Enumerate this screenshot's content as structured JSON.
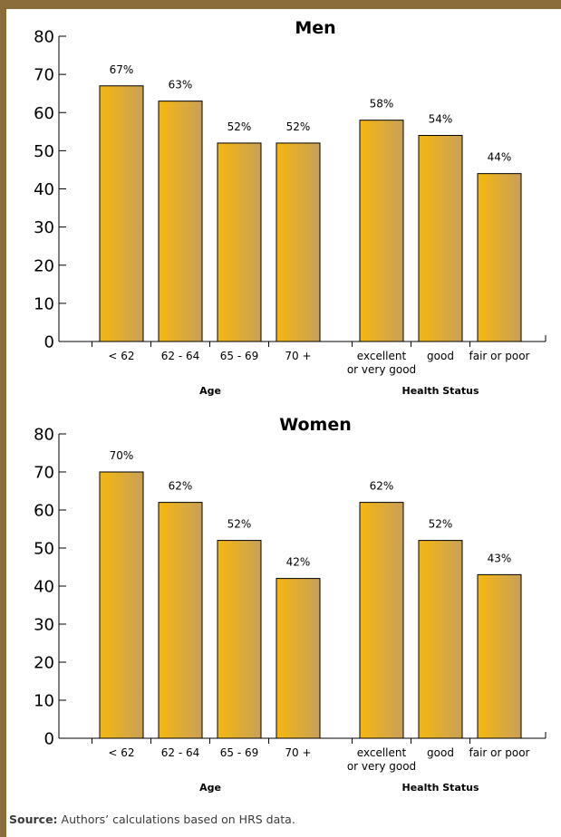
{
  "colors": {
    "frame": "#8a6d3b",
    "bar_light": "#f6b70e",
    "bar_dark": "#c8a05a",
    "axis": "#000000"
  },
  "chart_data": [
    {
      "type": "bar",
      "title": "Men",
      "ylim": [
        0,
        80
      ],
      "yticks": [
        0,
        10,
        20,
        30,
        40,
        50,
        60,
        70,
        80
      ],
      "groups": [
        {
          "label": "Age",
          "categories": [
            "< 62",
            "62 - 64",
            "65 - 69",
            "70 +"
          ],
          "values": [
            67,
            63,
            52,
            52
          ],
          "labels": [
            "67%",
            "63%",
            "52%",
            "52%"
          ]
        },
        {
          "label": "Health Status",
          "categories": [
            "excellent or very good",
            "good",
            "fair or poor"
          ],
          "values": [
            58,
            54,
            44
          ],
          "labels": [
            "58%",
            "54%",
            "44%"
          ]
        }
      ]
    },
    {
      "type": "bar",
      "title": "Women",
      "ylim": [
        0,
        80
      ],
      "yticks": [
        0,
        10,
        20,
        30,
        40,
        50,
        60,
        70,
        80
      ],
      "groups": [
        {
          "label": "Age",
          "categories": [
            "< 62",
            "62 - 64",
            "65 - 69",
            "70 +"
          ],
          "values": [
            70,
            62,
            52,
            42
          ],
          "labels": [
            "70%",
            "62%",
            "52%",
            "42%"
          ]
        },
        {
          "label": "Health Status",
          "categories": [
            "excellent or very good",
            "good",
            "fair or poor"
          ],
          "values": [
            62,
            52,
            43
          ],
          "labels": [
            "62%",
            "52%",
            "43%"
          ]
        }
      ]
    }
  ],
  "source": {
    "label": "Source:",
    "text": "Authors’ calculations based on HRS data."
  }
}
